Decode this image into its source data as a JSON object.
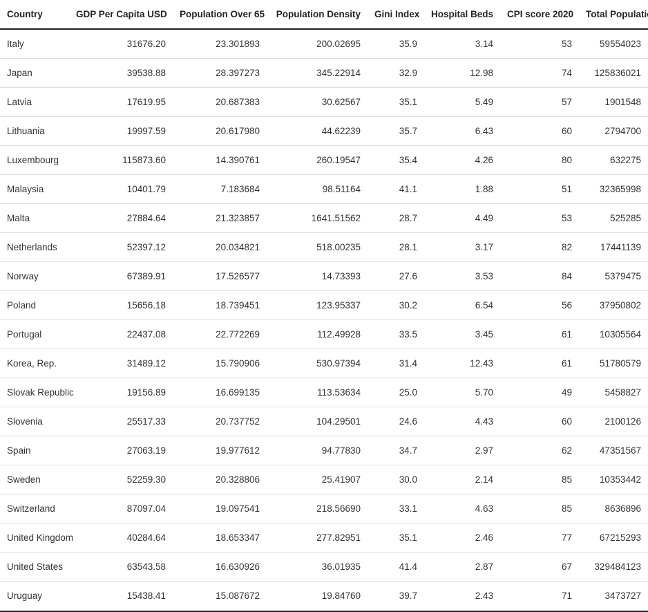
{
  "table": {
    "columns": [
      "Country",
      "GDP Per Capita USD",
      "Population Over 65",
      "Population Density",
      "Gini Index",
      "Hospital Beds",
      "CPI score 2020",
      "Total Population"
    ],
    "rows": [
      [
        "Italy",
        "31676.20",
        "23.301893",
        "200.02695",
        "35.9",
        "3.14",
        "53",
        "59554023"
      ],
      [
        "Japan",
        "39538.88",
        "28.397273",
        "345.22914",
        "32.9",
        "12.98",
        "74",
        "125836021"
      ],
      [
        "Latvia",
        "17619.95",
        "20.687383",
        "30.62567",
        "35.1",
        "5.49",
        "57",
        "1901548"
      ],
      [
        "Lithuania",
        "19997.59",
        "20.617980",
        "44.62239",
        "35.7",
        "6.43",
        "60",
        "2794700"
      ],
      [
        "Luxembourg",
        "115873.60",
        "14.390761",
        "260.19547",
        "35.4",
        "4.26",
        "80",
        "632275"
      ],
      [
        "Malaysia",
        "10401.79",
        "7.183684",
        "98.51164",
        "41.1",
        "1.88",
        "51",
        "32365998"
      ],
      [
        "Malta",
        "27884.64",
        "21.323857",
        "1641.51562",
        "28.7",
        "4.49",
        "53",
        "525285"
      ],
      [
        "Netherlands",
        "52397.12",
        "20.034821",
        "518.00235",
        "28.1",
        "3.17",
        "82",
        "17441139"
      ],
      [
        "Norway",
        "67389.91",
        "17.526577",
        "14.73393",
        "27.6",
        "3.53",
        "84",
        "5379475"
      ],
      [
        "Poland",
        "15656.18",
        "18.739451",
        "123.95337",
        "30.2",
        "6.54",
        "56",
        "37950802"
      ],
      [
        "Portugal",
        "22437.08",
        "22.772269",
        "112.49928",
        "33.5",
        "3.45",
        "61",
        "10305564"
      ],
      [
        "Korea, Rep.",
        "31489.12",
        "15.790906",
        "530.97394",
        "31.4",
        "12.43",
        "61",
        "51780579"
      ],
      [
        "Slovak Republic",
        "19156.89",
        "16.699135",
        "113.53634",
        "25.0",
        "5.70",
        "49",
        "5458827"
      ],
      [
        "Slovenia",
        "25517.33",
        "20.737752",
        "104.29501",
        "24.6",
        "4.43",
        "60",
        "2100126"
      ],
      [
        "Spain",
        "27063.19",
        "19.977612",
        "94.77830",
        "34.7",
        "2.97",
        "62",
        "47351567"
      ],
      [
        "Sweden",
        "52259.30",
        "20.328806",
        "25.41907",
        "30.0",
        "2.14",
        "85",
        "10353442"
      ],
      [
        "Switzerland",
        "87097.04",
        "19.097541",
        "218.56690",
        "33.1",
        "4.63",
        "85",
        "8636896"
      ],
      [
        "United Kingdom",
        "40284.64",
        "18.653347",
        "277.82951",
        "35.1",
        "2.46",
        "77",
        "67215293"
      ],
      [
        "United States",
        "63543.58",
        "16.630926",
        "36.01935",
        "41.4",
        "2.87",
        "67",
        "329484123"
      ],
      [
        "Uruguay",
        "15438.41",
        "15.087672",
        "19.84760",
        "39.7",
        "2.43",
        "71",
        "3473727"
      ]
    ]
  }
}
